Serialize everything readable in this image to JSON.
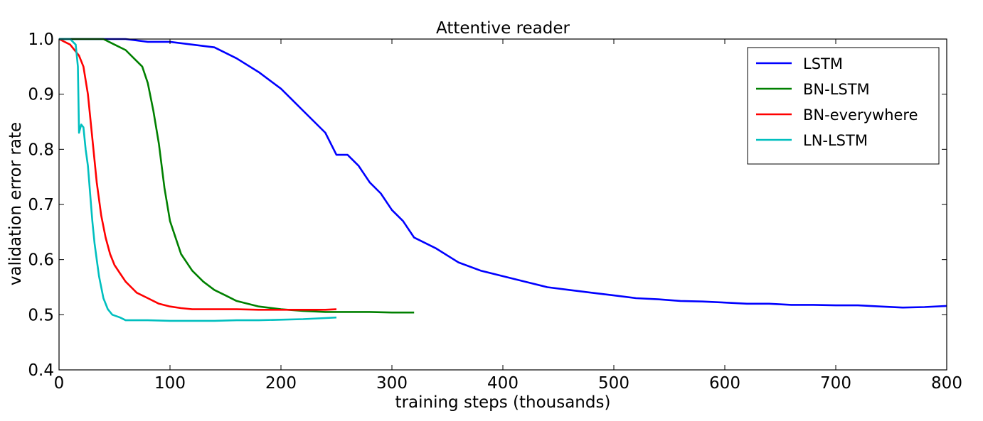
{
  "chart_data": {
    "type": "line",
    "title": "Attentive reader",
    "xlabel": "training steps (thousands)",
    "ylabel": "validation error rate",
    "xlim": [
      0,
      800
    ],
    "ylim": [
      0.4,
      1.0
    ],
    "xticks": [
      0,
      100,
      200,
      300,
      400,
      500,
      600,
      700,
      800
    ],
    "yticks": [
      0.4,
      0.5,
      0.6,
      0.7,
      0.8,
      0.9,
      1.0
    ],
    "xtick_labels": [
      "0",
      "100",
      "200",
      "300",
      "400",
      "500",
      "600",
      "700",
      "800"
    ],
    "ytick_labels": [
      "0.4",
      "0.5",
      "0.6",
      "0.7",
      "0.8",
      "0.9",
      "1.0"
    ],
    "grid": false,
    "legend_position": "top-right",
    "series": [
      {
        "name": "LSTM",
        "color": "#0000ff",
        "x": [
          0,
          20,
          40,
          60,
          80,
          100,
          120,
          140,
          160,
          180,
          200,
          210,
          220,
          230,
          240,
          250,
          260,
          270,
          280,
          290,
          300,
          310,
          320,
          340,
          360,
          380,
          400,
          420,
          440,
          460,
          480,
          500,
          520,
          540,
          560,
          580,
          600,
          620,
          640,
          660,
          680,
          700,
          720,
          740,
          760,
          780,
          800
        ],
        "y": [
          1.0,
          1.0,
          1.0,
          1.0,
          0.995,
          0.995,
          0.99,
          0.985,
          0.965,
          0.94,
          0.91,
          0.89,
          0.87,
          0.85,
          0.83,
          0.79,
          0.79,
          0.77,
          0.74,
          0.72,
          0.69,
          0.67,
          0.64,
          0.62,
          0.595,
          0.58,
          0.57,
          0.56,
          0.55,
          0.545,
          0.54,
          0.535,
          0.53,
          0.528,
          0.525,
          0.524,
          0.522,
          0.52,
          0.52,
          0.518,
          0.518,
          0.517,
          0.517,
          0.515,
          0.513,
          0.514,
          0.516
        ]
      },
      {
        "name": "BN-LSTM",
        "color": "#008000",
        "x": [
          0,
          20,
          40,
          50,
          60,
          70,
          75,
          80,
          85,
          90,
          95,
          100,
          110,
          120,
          130,
          140,
          150,
          160,
          180,
          200,
          220,
          240,
          260,
          280,
          300,
          320
        ],
        "y": [
          1.0,
          1.0,
          1.0,
          0.99,
          0.98,
          0.96,
          0.95,
          0.92,
          0.87,
          0.81,
          0.73,
          0.67,
          0.61,
          0.58,
          0.56,
          0.545,
          0.535,
          0.525,
          0.515,
          0.51,
          0.507,
          0.505,
          0.505,
          0.505,
          0.504,
          0.504
        ]
      },
      {
        "name": "BN-everywhere",
        "color": "#ff0000",
        "x": [
          0,
          10,
          18,
          22,
          26,
          30,
          34,
          38,
          42,
          46,
          50,
          55,
          60,
          65,
          70,
          80,
          90,
          100,
          110,
          120,
          140,
          160,
          180,
          200,
          220,
          240,
          250
        ],
        "y": [
          1.0,
          0.99,
          0.97,
          0.95,
          0.9,
          0.82,
          0.74,
          0.68,
          0.64,
          0.61,
          0.59,
          0.575,
          0.56,
          0.55,
          0.54,
          0.53,
          0.52,
          0.515,
          0.512,
          0.51,
          0.51,
          0.51,
          0.509,
          0.509,
          0.509,
          0.509,
          0.51
        ]
      },
      {
        "name": "LN-LSTM",
        "color": "#00bfbf",
        "x": [
          0,
          10,
          15,
          17,
          18,
          20,
          22,
          24,
          26,
          28,
          30,
          32,
          34,
          36,
          38,
          40,
          44,
          48,
          55,
          60,
          70,
          80,
          100,
          120,
          140,
          160,
          180,
          200,
          220,
          240,
          250
        ],
        "y": [
          1.0,
          1.0,
          0.99,
          0.95,
          0.83,
          0.845,
          0.84,
          0.8,
          0.77,
          0.72,
          0.67,
          0.63,
          0.6,
          0.57,
          0.55,
          0.53,
          0.51,
          0.5,
          0.495,
          0.49,
          0.49,
          0.49,
          0.489,
          0.489,
          0.489,
          0.49,
          0.49,
          0.491,
          0.492,
          0.494,
          0.495
        ]
      }
    ]
  }
}
